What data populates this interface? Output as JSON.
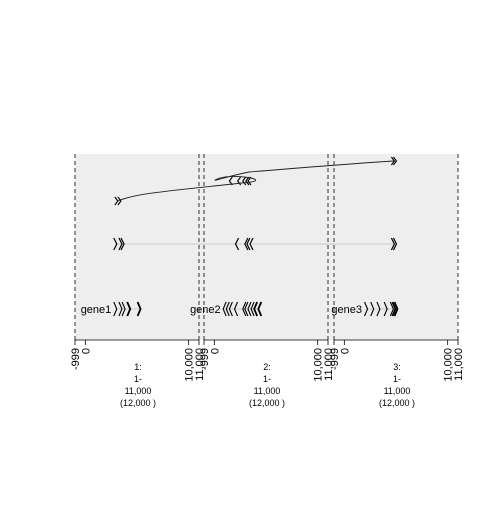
{
  "chart_data": {
    "type": "genome-track",
    "x_range": [
      -999,
      11000
    ],
    "panels": [
      {
        "ticks": [
          "-999",
          "0",
          "10,000",
          "11,000"
        ],
        "caption": [
          "1:",
          "1-",
          "11,000",
          "(12,000 )"
        ],
        "gene_label": "gene1",
        "top_arrows": [
          3000,
          3300
        ],
        "mid_arrows": [
          2900,
          3400,
          3600
        ],
        "bot_arrows": [
          2900,
          3400,
          3700,
          4200,
          5200
        ]
      },
      {
        "ticks": [
          "-999",
          "0",
          "10,000",
          "11,000"
        ],
        "caption": [
          "2:",
          "1-",
          "11,000",
          "(12,000 )"
        ],
        "gene_label": "gene2",
        "top_arrows": [
          1600,
          2400,
          2900,
          3200,
          3400
        ],
        "mid_arrows": [
          2200,
          3100,
          3300,
          3600
        ],
        "bot_arrows": [
          1000,
          1300,
          1600,
          2100,
          2900,
          3100,
          3400,
          3700,
          4000,
          4400
        ]
      },
      {
        "ticks": [
          "-999",
          "0",
          "10,000",
          "11,000"
        ],
        "caption": [
          "3:",
          "1-",
          "11,000",
          "(12,000 )"
        ],
        "gene_label": "gene3",
        "top_arrows": [
          4700,
          4900
        ],
        "mid_arrows": [
          4700,
          4900
        ],
        "bot_arrows": [
          2100,
          2700,
          3300,
          4000,
          4600,
          4800,
          5000
        ]
      }
    ],
    "top_track_curve": [
      {
        "panel": 0,
        "x": 3100
      },
      {
        "panel": 1,
        "x": 2400
      },
      {
        "panel": 2,
        "x": 4800
      }
    ],
    "grid": false,
    "background_color": "#eeeeee"
  }
}
